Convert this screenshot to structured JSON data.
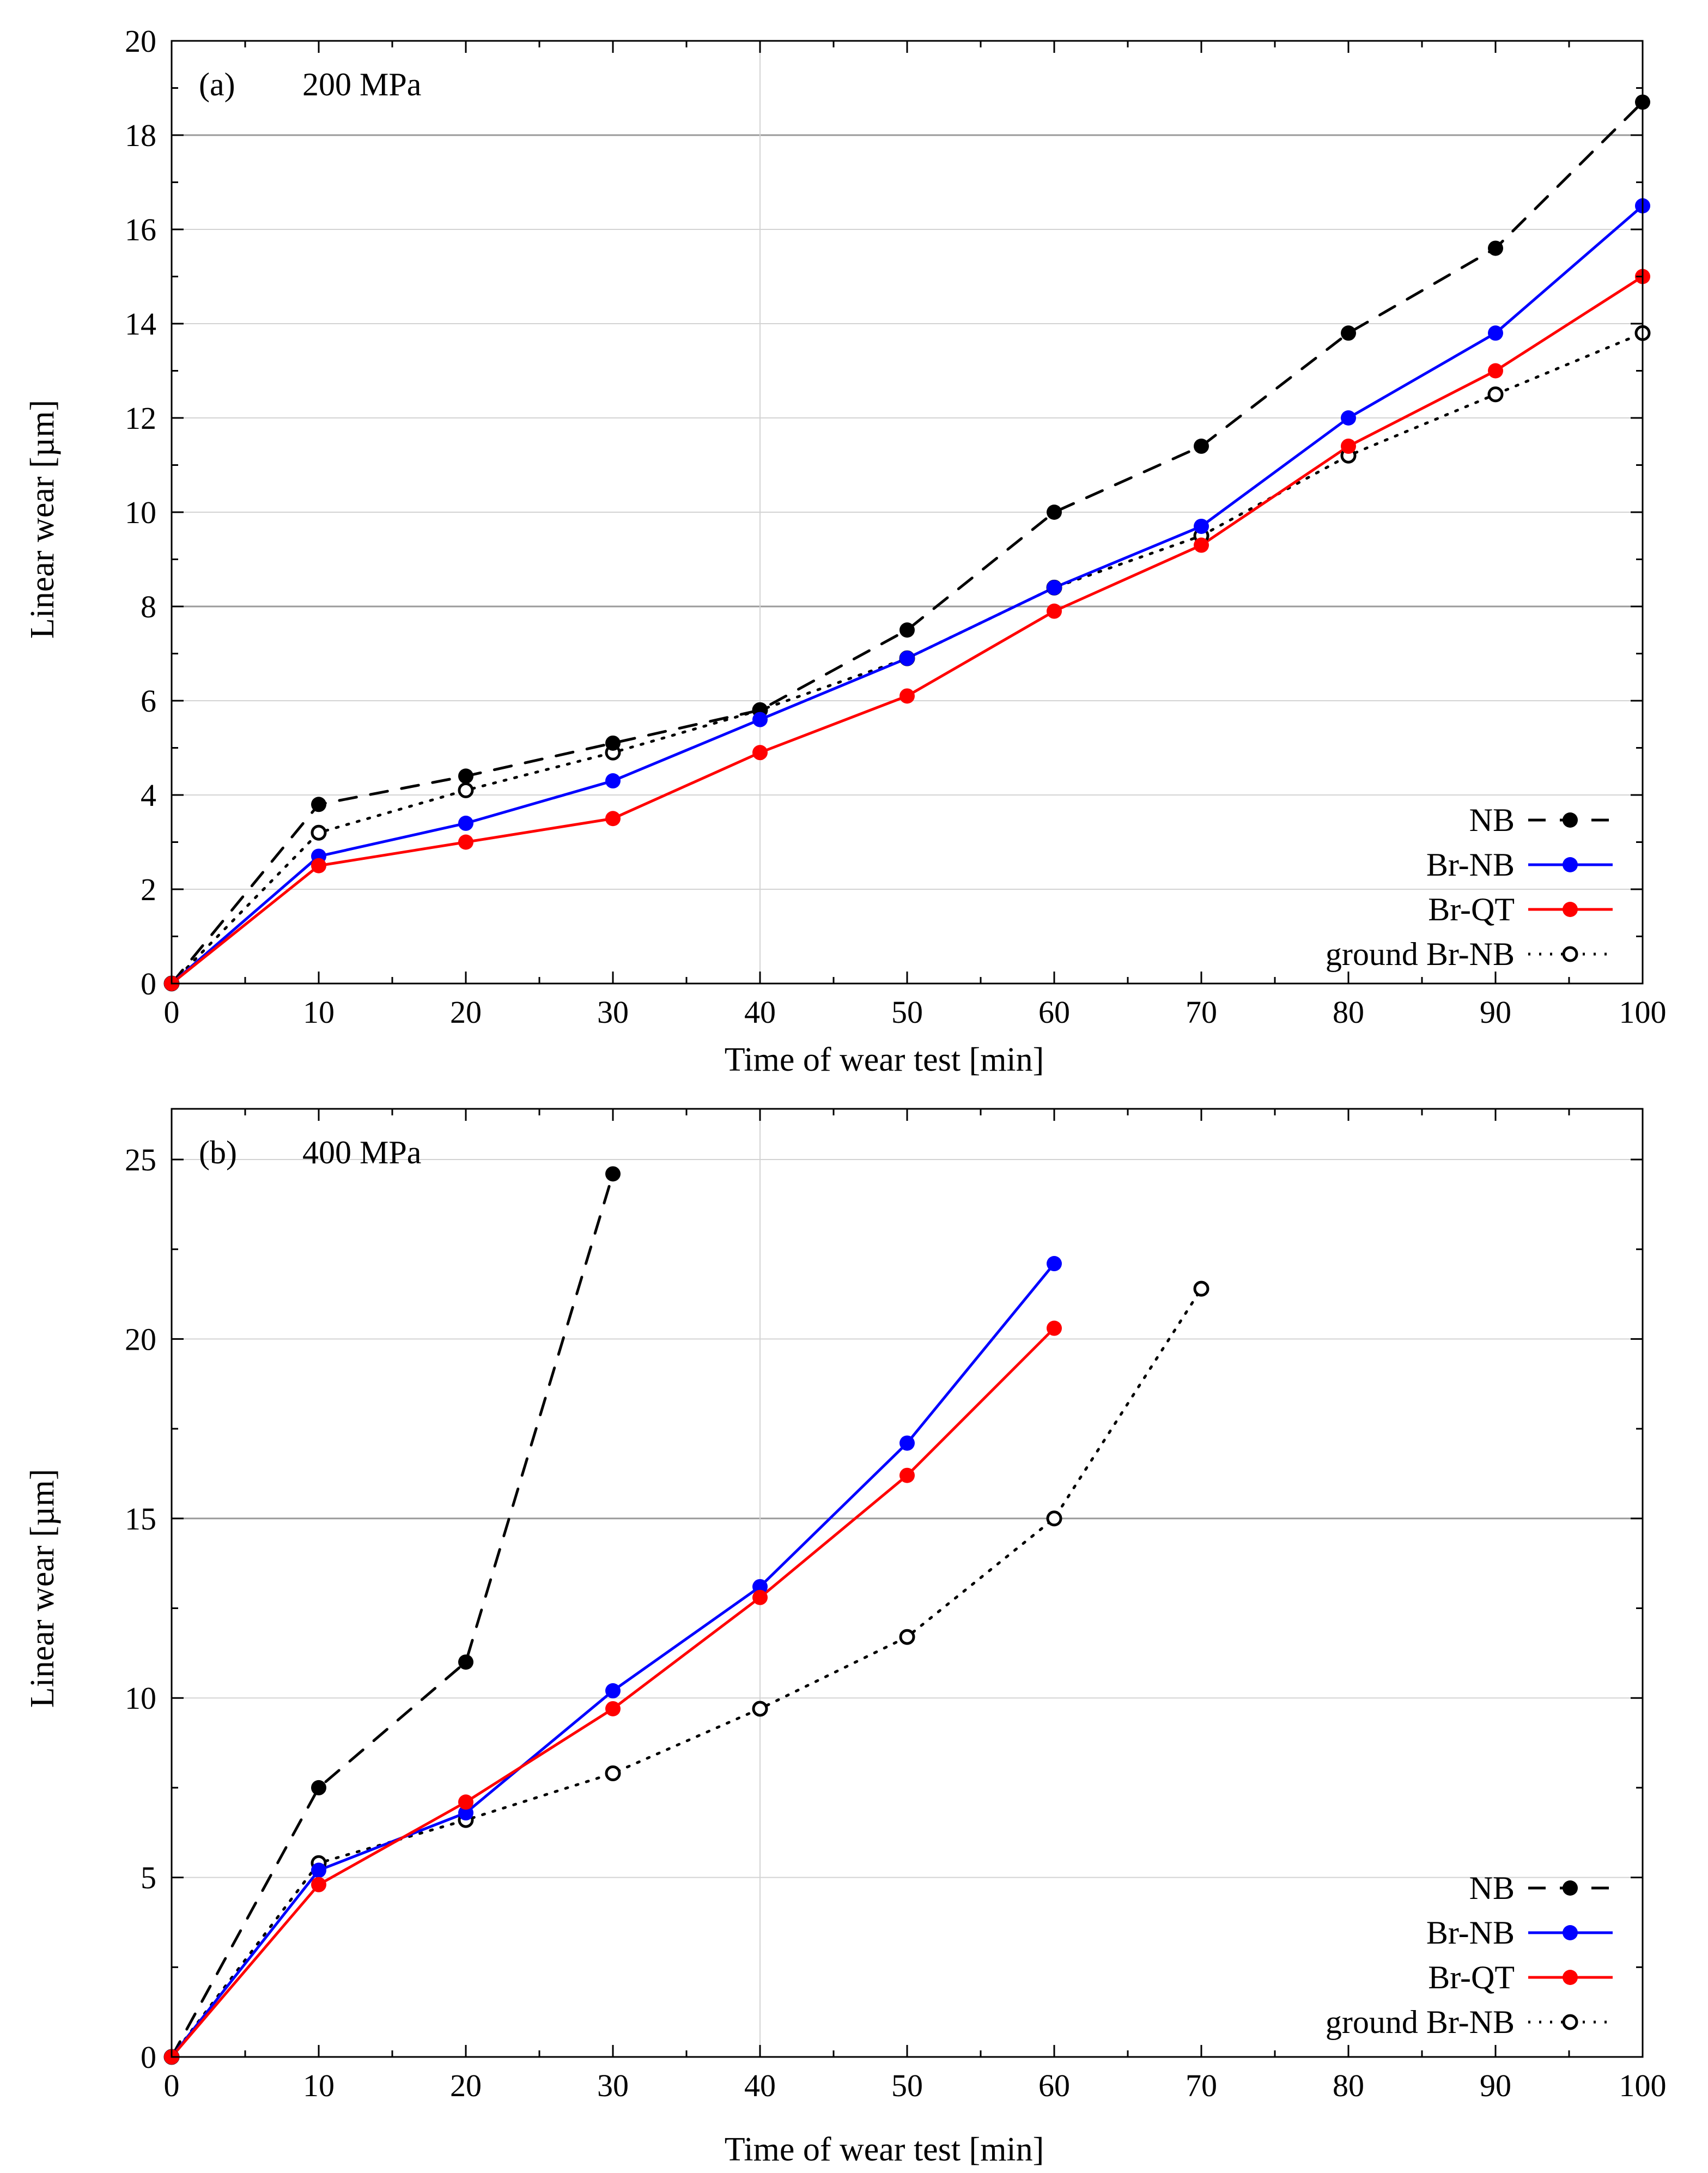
{
  "chart_data": [
    {
      "type": "line",
      "panel_label": "(a)",
      "title": "200 MPa",
      "xlabel": "Time of wear test [min]",
      "ylabel": "Linear wear [µm]",
      "xlim": [
        0,
        100
      ],
      "ylim": [
        0,
        20
      ],
      "xticks": [
        0,
        10,
        20,
        30,
        40,
        50,
        60,
        70,
        80,
        90,
        100
      ],
      "yticks": [
        0,
        2,
        4,
        6,
        8,
        10,
        12,
        14,
        16,
        18,
        20
      ],
      "grid": true,
      "legend_position": "bottom-right",
      "series": [
        {
          "name": "NB",
          "color": "#000000",
          "style": "dashed",
          "marker": "filled",
          "x": [
            0,
            10,
            20,
            30,
            40,
            50,
            60,
            70,
            80,
            90,
            100
          ],
          "values": [
            0,
            3.8,
            4.4,
            5.1,
            5.8,
            7.5,
            10.0,
            11.4,
            13.8,
            15.6,
            18.7
          ]
        },
        {
          "name": "Br-NB",
          "color": "#0000ff",
          "style": "solid",
          "marker": "filled",
          "x": [
            0,
            10,
            20,
            30,
            40,
            50,
            60,
            70,
            80,
            90,
            100
          ],
          "values": [
            0,
            2.7,
            3.4,
            4.3,
            5.6,
            6.9,
            8.4,
            9.7,
            12.0,
            13.8,
            16.5
          ]
        },
        {
          "name": "Br-QT",
          "color": "#ff0000",
          "style": "solid",
          "marker": "filled",
          "x": [
            0,
            10,
            20,
            30,
            40,
            50,
            60,
            70,
            80,
            90,
            100
          ],
          "values": [
            0,
            2.5,
            3.0,
            3.5,
            4.9,
            6.1,
            7.9,
            9.3,
            11.4,
            13.0,
            15.0
          ]
        },
        {
          "name": "ground Br-NB",
          "color": "#000000",
          "style": "dotted",
          "marker": "open",
          "x": [
            0,
            10,
            20,
            30,
            40,
            50,
            60,
            70,
            80,
            90,
            100
          ],
          "values": [
            0,
            3.2,
            4.1,
            4.9,
            5.8,
            6.9,
            8.4,
            9.5,
            11.2,
            12.5,
            13.8
          ]
        }
      ]
    },
    {
      "type": "line",
      "panel_label": "(b)",
      "title": "400 MPa",
      "xlabel": "Time of wear test [min]",
      "ylabel": "Linear wear [µm]",
      "xlim": [
        0,
        100
      ],
      "ylim": [
        0,
        26
      ],
      "xticks": [
        0,
        10,
        20,
        30,
        40,
        50,
        60,
        70,
        80,
        90,
        100
      ],
      "yticks": [
        0,
        5,
        10,
        15,
        20,
        25
      ],
      "grid": true,
      "legend_position": "bottom-right",
      "series": [
        {
          "name": "NB",
          "color": "#000000",
          "style": "dashed",
          "marker": "filled",
          "x": [
            0,
            10,
            20,
            30
          ],
          "values": [
            0,
            7.5,
            11.0,
            24.6
          ]
        },
        {
          "name": "Br-NB",
          "color": "#0000ff",
          "style": "solid",
          "marker": "filled",
          "x": [
            0,
            10,
            20,
            30,
            40,
            50,
            60
          ],
          "values": [
            0,
            5.2,
            6.8,
            10.2,
            13.1,
            17.1,
            22.1
          ]
        },
        {
          "name": "Br-QT",
          "color": "#ff0000",
          "style": "solid",
          "marker": "filled",
          "x": [
            0,
            10,
            20,
            30,
            40,
            50,
            60
          ],
          "values": [
            0,
            4.8,
            7.1,
            9.7,
            12.8,
            16.2,
            20.3
          ]
        },
        {
          "name": "ground Br-NB",
          "color": "#000000",
          "style": "dotted",
          "marker": "open",
          "x": [
            0,
            10,
            20,
            30,
            40,
            50,
            60,
            70
          ],
          "values": [
            0,
            5.4,
            6.6,
            7.9,
            9.7,
            11.7,
            15.0,
            21.4
          ]
        }
      ]
    }
  ]
}
